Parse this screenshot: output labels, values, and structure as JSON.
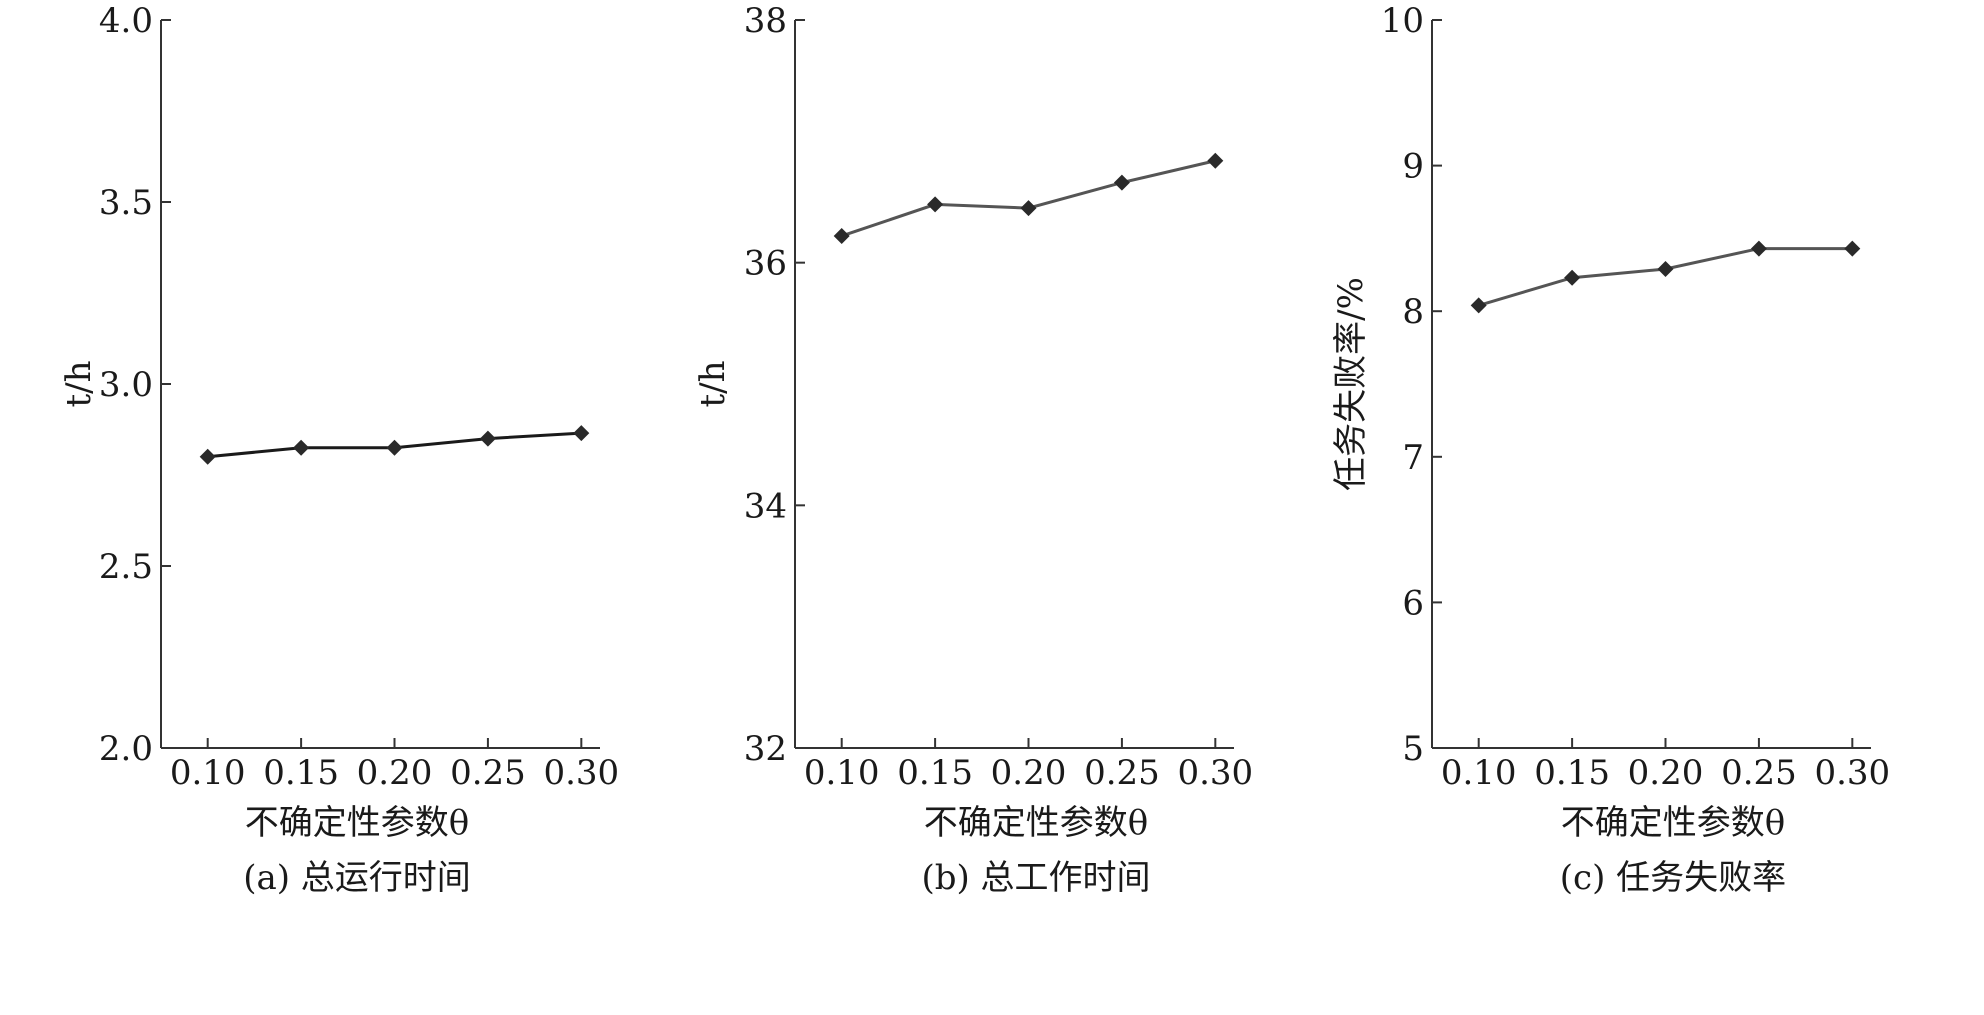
{
  "colors": {
    "axis": "#333333",
    "line_a": "#1a1a1a",
    "line_bc": "#555555",
    "marker": "#2a2a2a"
  },
  "chart_data": [
    {
      "type": "line",
      "panel": "(a)",
      "caption": "(a) 总运行时间",
      "xlabel": "不确定性参数θ",
      "ylabel": "t/h",
      "x": [
        0.1,
        0.15,
        0.2,
        0.25,
        0.3
      ],
      "x_tick_labels": [
        "0.10",
        "0.15",
        "0.20",
        "0.25",
        "0.30"
      ],
      "xlim": [
        0.075,
        0.31
      ],
      "ylim": [
        2.0,
        4.0
      ],
      "y_ticks": [
        2.0,
        2.5,
        3.0,
        3.5,
        4.0
      ],
      "y_tick_labels": [
        "2.0",
        "2.5",
        "3.0",
        "3.5",
        "4.0"
      ],
      "series": [
        {
          "values": [
            2.8,
            2.825,
            2.825,
            2.85,
            2.865
          ],
          "marker": "diamond"
        }
      ]
    },
    {
      "type": "line",
      "panel": "(b)",
      "caption": "(b) 总工作时间",
      "xlabel": "不确定性参数θ",
      "ylabel": "t/h",
      "x": [
        0.1,
        0.15,
        0.2,
        0.25,
        0.3
      ],
      "x_tick_labels": [
        "0.10",
        "0.15",
        "0.20",
        "0.25",
        "0.30"
      ],
      "xlim": [
        0.075,
        0.31
      ],
      "ylim": [
        32,
        38
      ],
      "y_ticks": [
        32,
        34,
        36,
        38
      ],
      "y_tick_labels": [
        "32",
        "34",
        "36",
        "38"
      ],
      "series": [
        {
          "values": [
            36.22,
            36.48,
            36.45,
            36.66,
            36.84
          ],
          "marker": "diamond"
        }
      ]
    },
    {
      "type": "line",
      "panel": "(c)",
      "caption": "(c) 任务失败率",
      "xlabel": "不确定性参数θ",
      "ylabel": "任务失败率/%",
      "x": [
        0.1,
        0.15,
        0.2,
        0.25,
        0.3
      ],
      "x_tick_labels": [
        "0.10",
        "0.15",
        "0.20",
        "0.25",
        "0.30"
      ],
      "xlim": [
        0.075,
        0.31
      ],
      "ylim": [
        5,
        10
      ],
      "y_ticks": [
        5,
        6,
        7,
        8,
        9,
        10
      ],
      "y_tick_labels": [
        "5",
        "6",
        "7",
        "8",
        "9",
        "10"
      ],
      "series": [
        {
          "values": [
            8.04,
            8.23,
            8.29,
            8.43,
            8.43
          ],
          "marker": "diamond"
        }
      ]
    }
  ]
}
